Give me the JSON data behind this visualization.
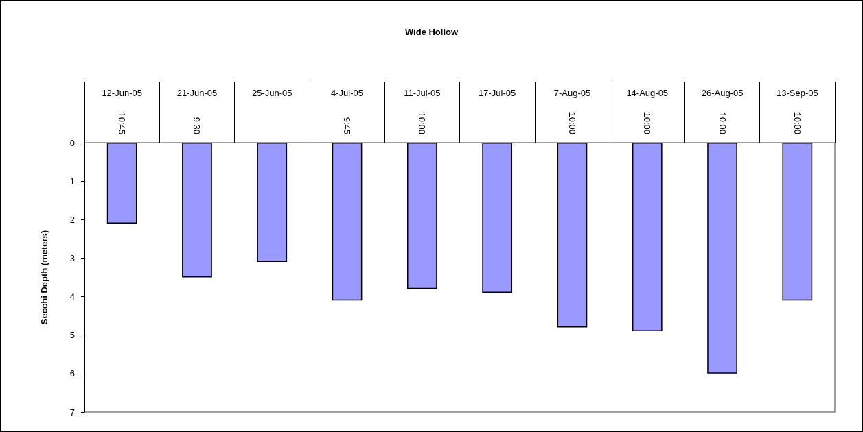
{
  "chart_data": {
    "type": "bar",
    "title": "Wide Hollow",
    "ylabel": "Secchi Depth (meters)",
    "categories": [
      "12-Jun-05\n10:45",
      "21-Jun-05\n9:30",
      "25-Jun-05",
      "4-Jul-05\n9:45",
      "11-Jul-05\n10:00",
      "17-Jul-05",
      "7-Aug-05\n10:00",
      "14-Aug-05\n10:00",
      "26-Aug-05\n10:00",
      "13-Sep-05\n10:00"
    ],
    "series": [
      {
        "color": "#9999ff",
        "values": [
          2.1,
          3.5,
          3.1,
          4.1,
          3.8,
          3.9,
          4.8,
          4.9,
          6.0,
          4.1
        ]
      }
    ],
    "ylim": [
      7,
      0
    ],
    "yticks": [
      0,
      1,
      2,
      3,
      4,
      5,
      6,
      7
    ],
    "grid": false
  }
}
